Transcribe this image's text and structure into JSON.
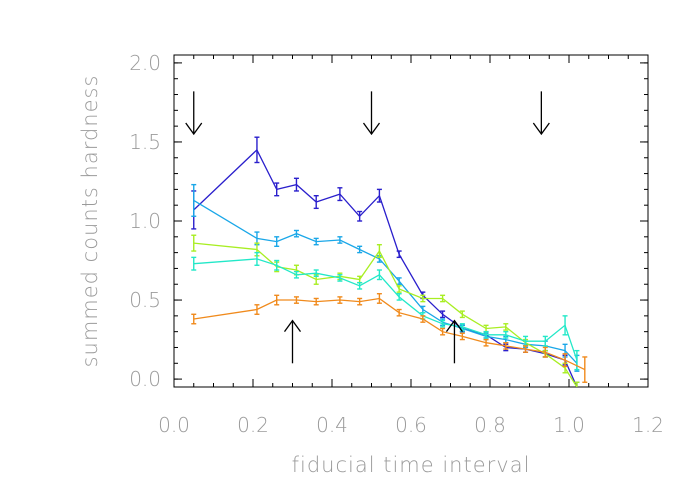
{
  "chart_data": {
    "type": "line",
    "title": "",
    "xlabel": "fiducial time interval",
    "ylabel": "summed counts hardness",
    "xlim": [
      0.0,
      1.2
    ],
    "ylim": [
      -0.05,
      2.05
    ],
    "xticks": [
      "0.0",
      "0.2",
      "0.4",
      "0.6",
      "0.8",
      "1.0",
      "1.2"
    ],
    "yticks": [
      "0.0",
      "0.5",
      "1.0",
      "1.5",
      "2.0"
    ],
    "grid": false,
    "series": [
      {
        "color": "#2a1fcc",
        "x": [
          0.05,
          0.21,
          0.26,
          0.31,
          0.36,
          0.42,
          0.47,
          0.52,
          0.57,
          0.63,
          0.68,
          0.73,
          0.79,
          0.84,
          0.89,
          0.94,
          0.99,
          1.02
        ],
        "y": [
          1.07,
          1.45,
          1.2,
          1.23,
          1.12,
          1.17,
          1.03,
          1.16,
          0.79,
          0.53,
          0.41,
          0.32,
          0.28,
          0.2,
          0.19,
          0.16,
          0.12,
          -0.05
        ],
        "err": [
          0.12,
          0.08,
          0.04,
          0.04,
          0.04,
          0.04,
          0.03,
          0.04,
          0.02,
          0.02,
          0.02,
          0.02,
          0.02,
          0.02,
          0.02,
          0.02,
          0.03,
          0.03
        ]
      },
      {
        "color": "#1aa7e8",
        "x": [
          0.05,
          0.21,
          0.26,
          0.31,
          0.36,
          0.42,
          0.47,
          0.52,
          0.57,
          0.63,
          0.68,
          0.73,
          0.79,
          0.84,
          0.89,
          0.94,
          0.99,
          1.02
        ],
        "y": [
          1.13,
          0.89,
          0.87,
          0.92,
          0.87,
          0.88,
          0.82,
          0.76,
          0.62,
          0.44,
          0.36,
          0.32,
          0.27,
          0.25,
          0.22,
          0.21,
          0.18,
          0.1
        ],
        "err": [
          0.1,
          0.04,
          0.03,
          0.02,
          0.02,
          0.02,
          0.02,
          0.02,
          0.02,
          0.02,
          0.02,
          0.02,
          0.02,
          0.02,
          0.02,
          0.03,
          0.04,
          0.05
        ]
      },
      {
        "color": "#a8ee22",
        "x": [
          0.05,
          0.21,
          0.26,
          0.31,
          0.36,
          0.42,
          0.47,
          0.52,
          0.57,
          0.63,
          0.68,
          0.73,
          0.79,
          0.84,
          0.89,
          0.94,
          0.99,
          1.02
        ],
        "y": [
          0.86,
          0.82,
          0.71,
          0.69,
          0.63,
          0.65,
          0.63,
          0.81,
          0.57,
          0.51,
          0.51,
          0.41,
          0.32,
          0.33,
          0.23,
          0.16,
          0.07,
          -0.05
        ],
        "err": [
          0.05,
          0.04,
          0.03,
          0.03,
          0.03,
          0.02,
          0.02,
          0.04,
          0.02,
          0.02,
          0.02,
          0.02,
          0.02,
          0.02,
          0.02,
          0.02,
          0.03,
          0.03
        ]
      },
      {
        "color": "#22e8c8",
        "x": [
          0.05,
          0.21,
          0.26,
          0.31,
          0.36,
          0.42,
          0.47,
          0.52,
          0.57,
          0.63,
          0.68,
          0.73,
          0.79,
          0.84,
          0.89,
          0.94,
          0.99,
          1.02
        ],
        "y": [
          0.73,
          0.76,
          0.72,
          0.66,
          0.67,
          0.64,
          0.59,
          0.66,
          0.52,
          0.4,
          0.35,
          0.33,
          0.28,
          0.28,
          0.24,
          0.24,
          0.34,
          0.12
        ],
        "err": [
          0.04,
          0.04,
          0.03,
          0.02,
          0.02,
          0.02,
          0.02,
          0.03,
          0.02,
          0.02,
          0.02,
          0.02,
          0.02,
          0.02,
          0.03,
          0.03,
          0.06,
          0.06
        ]
      },
      {
        "color": "#f08a1c",
        "x": [
          0.05,
          0.21,
          0.26,
          0.31,
          0.36,
          0.42,
          0.47,
          0.52,
          0.57,
          0.63,
          0.68,
          0.73,
          0.79,
          0.84,
          0.89,
          0.94,
          0.99,
          1.04
        ],
        "y": [
          0.38,
          0.44,
          0.5,
          0.5,
          0.49,
          0.5,
          0.49,
          0.51,
          0.42,
          0.38,
          0.3,
          0.27,
          0.23,
          0.21,
          0.19,
          0.17,
          0.12,
          0.06
        ],
        "err": [
          0.03,
          0.03,
          0.03,
          0.02,
          0.02,
          0.02,
          0.02,
          0.03,
          0.02,
          0.02,
          0.02,
          0.02,
          0.02,
          0.02,
          0.02,
          0.03,
          0.04,
          0.08
        ]
      }
    ],
    "arrows": [
      {
        "x": 0.05,
        "direction": "down",
        "y_from": 1.82,
        "y_to": 1.55
      },
      {
        "x": 0.5,
        "direction": "down",
        "y_from": 1.82,
        "y_to": 1.55
      },
      {
        "x": 0.93,
        "direction": "down",
        "y_from": 1.82,
        "y_to": 1.55
      },
      {
        "x": 0.3,
        "direction": "up",
        "y_from": 0.1,
        "y_to": 0.37
      },
      {
        "x": 0.71,
        "direction": "up",
        "y_from": 0.1,
        "y_to": 0.37
      }
    ]
  }
}
